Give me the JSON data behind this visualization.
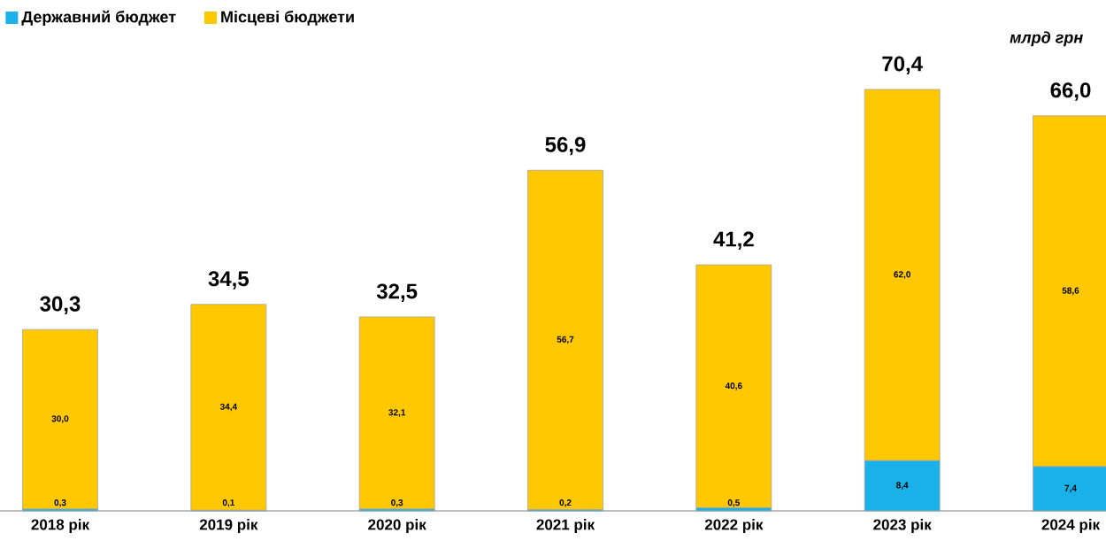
{
  "chart_data": {
    "type": "bar",
    "stacked": true,
    "categories": [
      "2018 рік",
      "2019 рік",
      "2020 рік",
      "2021 рік",
      "2022 рік",
      "2023 рік",
      "2024 рік"
    ],
    "series": [
      {
        "name": "Державний бюджет",
        "color": "#1ab0e8",
        "values": [
          0.3,
          0.1,
          0.3,
          0.2,
          0.5,
          8.4,
          7.4
        ],
        "value_labels": [
          "0,3",
          "0,1",
          "0,3",
          "0,2",
          "0,5",
          "8,4",
          "7,4"
        ]
      },
      {
        "name": "Місцеві бюджети",
        "color": "#ffc800",
        "values": [
          30.0,
          34.4,
          32.1,
          56.7,
          40.6,
          62.0,
          58.6
        ],
        "value_labels": [
          "30,0",
          "34,4",
          "32,1",
          "56,7",
          "40,6",
          "62,0",
          "58,6"
        ]
      }
    ],
    "totals": [
      "30,3",
      "34,5",
      "32,5",
      "56,9",
      "41,2",
      "70,4",
      "66,0"
    ],
    "annotations": [
      "млрд грн"
    ],
    "legend": "top left"
  }
}
